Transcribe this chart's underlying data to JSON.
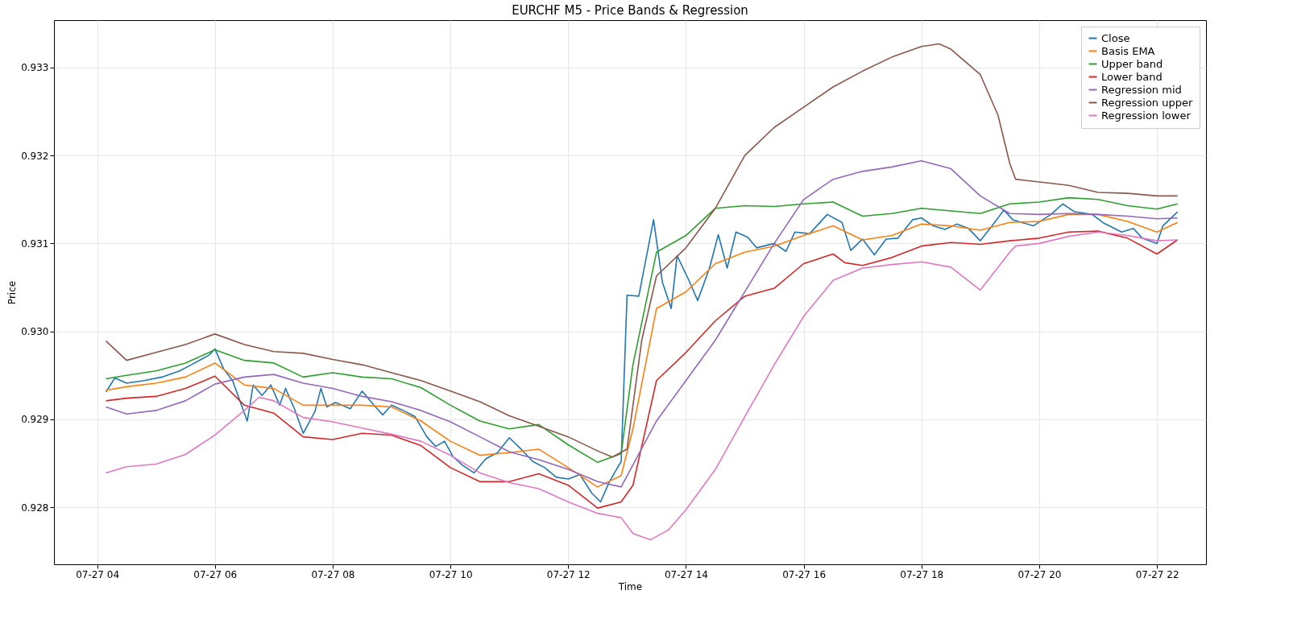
{
  "chart_data": {
    "type": "line",
    "title": "EURCHF M5 - Price Bands & Regression",
    "xlabel": "Time",
    "ylabel": "Price",
    "xlim": [
      "--07-27T03:16",
      "--07-27T22:50"
    ],
    "xticks": [
      {
        "value": "--07-27T04:00",
        "label": "07-27 04"
      },
      {
        "value": "--07-27T06:00",
        "label": "07-27 06"
      },
      {
        "value": "--07-27T08:00",
        "label": "07-27 08"
      },
      {
        "value": "--07-27T10:00",
        "label": "07-27 10"
      },
      {
        "value": "--07-27T12:00",
        "label": "07-27 12"
      },
      {
        "value": "--07-27T14:00",
        "label": "07-27 14"
      },
      {
        "value": "--07-27T16:00",
        "label": "07-27 16"
      },
      {
        "value": "--07-27T18:00",
        "label": "07-27 18"
      },
      {
        "value": "--07-27T20:00",
        "label": "07-27 20"
      },
      {
        "value": "--07-27T22:00",
        "label": "07-27 22"
      }
    ],
    "ylim": [
      0.92735,
      0.93354
    ],
    "yticks": [
      0.928,
      0.929,
      {
        "value": 0.93,
        "label": "0.930"
      },
      0.931,
      0.932,
      0.933
    ],
    "grid": true,
    "legend": "top right",
    "series": [
      {
        "name": "Close",
        "color": "#1f77b4",
        "x": [
          "--07-27T04:09",
          "--07-27T04:18",
          "--07-27T04:30",
          "--07-27T04:48",
          "--07-27T05:06",
          "--07-27T05:24",
          "--07-27T05:36",
          "--07-27T05:54",
          "--07-27T06:00",
          "--07-27T06:09",
          "--07-27T06:18",
          "--07-27T06:27",
          "--07-27T06:33",
          "--07-27T06:39",
          "--07-27T06:48",
          "--07-27T06:57",
          "--07-27T07:06",
          "--07-27T07:12",
          "--07-27T07:21",
          "--07-27T07:30",
          "--07-27T07:42",
          "--07-27T07:48",
          "--07-27T07:54",
          "--07-27T08:03",
          "--07-27T08:18",
          "--07-27T08:30",
          "--07-27T08:42",
          "--07-27T08:51",
          "--07-27T09:00",
          "--07-27T09:12",
          "--07-27T09:24",
          "--07-27T09:36",
          "--07-27T09:45",
          "--07-27T09:54",
          "--07-27T10:03",
          "--07-27T10:12",
          "--07-27T10:24",
          "--07-27T10:36",
          "--07-27T10:48",
          "--07-27T11:00",
          "--07-27T11:12",
          "--07-27T11:24",
          "--07-27T11:36",
          "--07-27T11:48",
          "--07-27T12:00",
          "--07-27T12:12",
          "--07-27T12:24",
          "--07-27T12:33",
          "--07-27T12:42",
          "--07-27T12:54",
          "--07-27T13:00",
          "--07-27T13:12",
          "--07-27T13:27",
          "--07-27T13:36",
          "--07-27T13:45",
          "--07-27T13:51",
          "--07-27T14:03",
          "--07-27T14:12",
          "--07-27T14:24",
          "--07-27T14:33",
          "--07-27T14:42",
          "--07-27T14:51",
          "--07-27T15:03",
          "--07-27T15:12",
          "--07-27T15:30",
          "--07-27T15:42",
          "--07-27T15:51",
          "--07-27T16:06",
          "--07-27T16:24",
          "--07-27T16:39",
          "--07-27T16:48",
          "--07-27T17:00",
          "--07-27T17:12",
          "--07-27T17:24",
          "--07-27T17:36",
          "--07-27T17:51",
          "--07-27T18:00",
          "--07-27T18:12",
          "--07-27T18:24",
          "--07-27T18:36",
          "--07-27T18:48",
          "--07-27T19:00",
          "--07-27T19:12",
          "--07-27T19:24",
          "--07-27T19:33",
          "--07-27T19:54",
          "--07-27T20:12",
          "--07-27T20:24",
          "--07-27T20:36",
          "--07-27T20:54",
          "--07-27T21:06",
          "--07-27T21:24",
          "--07-27T21:36",
          "--07-27T21:45",
          "--07-27T22:00",
          "--07-27T22:06",
          "--07-27T22:21"
        ],
        "values": [
          0.92931,
          0.92947,
          0.92941,
          0.92944,
          0.92948,
          0.92955,
          0.92962,
          0.92973,
          0.9298,
          0.92957,
          0.92944,
          0.92916,
          0.92898,
          0.92939,
          0.92927,
          0.92939,
          0.92916,
          0.92935,
          0.92912,
          0.92884,
          0.92909,
          0.92935,
          0.92914,
          0.92919,
          0.92912,
          0.92932,
          0.92916,
          0.92905,
          0.92916,
          0.9291,
          0.92903,
          0.9288,
          0.92869,
          0.92875,
          0.92857,
          0.92848,
          0.92839,
          0.92855,
          0.92862,
          0.92879,
          0.92866,
          0.92852,
          0.92845,
          0.92834,
          0.92832,
          0.92837,
          0.92816,
          0.92806,
          0.92829,
          0.92852,
          0.93041,
          0.9304,
          0.93127,
          0.93056,
          0.93026,
          0.93086,
          0.93058,
          0.93035,
          0.93072,
          0.9311,
          0.93072,
          0.93113,
          0.93107,
          0.93095,
          0.931,
          0.93091,
          0.93113,
          0.93111,
          0.93133,
          0.93124,
          0.93092,
          0.93105,
          0.93087,
          0.93105,
          0.93106,
          0.93127,
          0.93129,
          0.9312,
          0.93116,
          0.93122,
          0.93117,
          0.93103,
          0.9312,
          0.93138,
          0.93127,
          0.9312,
          0.93133,
          0.93145,
          0.93136,
          0.93133,
          0.93123,
          0.93113,
          0.93117,
          0.93106,
          0.931,
          0.9312,
          0.93136
        ]
      },
      {
        "name": "Basis EMA",
        "color": "#ff7f0e",
        "x": [
          "--07-27T04:09",
          "--07-27T04:30",
          "--07-27T05:00",
          "--07-27T05:30",
          "--07-27T06:00",
          "--07-27T06:30",
          "--07-27T07:00",
          "--07-27T07:30",
          "--07-27T08:00",
          "--07-27T08:30",
          "--07-27T09:00",
          "--07-27T09:30",
          "--07-27T10:00",
          "--07-27T10:30",
          "--07-27T11:00",
          "--07-27T11:30",
          "--07-27T12:00",
          "--07-27T12:30",
          "--07-27T12:54",
          "--07-27T13:06",
          "--07-27T13:30",
          "--07-27T14:00",
          "--07-27T14:30",
          "--07-27T15:00",
          "--07-27T15:30",
          "--07-27T16:00",
          "--07-27T16:30",
          "--07-27T17:00",
          "--07-27T17:30",
          "--07-27T18:00",
          "--07-27T18:30",
          "--07-27T19:00",
          "--07-27T19:30",
          "--07-27T20:00",
          "--07-27T20:30",
          "--07-27T21:00",
          "--07-27T21:30",
          "--07-27T22:00",
          "--07-27T22:21"
        ],
        "values": [
          0.92933,
          0.92937,
          0.92941,
          0.92948,
          0.92964,
          0.92939,
          0.92935,
          0.92916,
          0.92916,
          0.92916,
          0.92914,
          0.92898,
          0.92875,
          0.92859,
          0.92862,
          0.92866,
          0.92845,
          0.92823,
          0.92836,
          0.92889,
          0.93026,
          0.93045,
          0.93077,
          0.9309,
          0.93097,
          0.93109,
          0.9312,
          0.93104,
          0.93109,
          0.93122,
          0.9312,
          0.93115,
          0.93124,
          0.93125,
          0.93133,
          0.93133,
          0.93125,
          0.93113,
          0.93124
        ]
      },
      {
        "name": "Upper band",
        "color": "#2ca02c",
        "x": [
          "--07-27T04:09",
          "--07-27T04:30",
          "--07-27T05:00",
          "--07-27T05:30",
          "--07-27T06:00",
          "--07-27T06:30",
          "--07-27T07:00",
          "--07-27T07:30",
          "--07-27T08:00",
          "--07-27T08:30",
          "--07-27T09:00",
          "--07-27T09:30",
          "--07-27T10:00",
          "--07-27T10:30",
          "--07-27T11:00",
          "--07-27T11:30",
          "--07-27T12:00",
          "--07-27T12:30",
          "--07-27T12:54",
          "--07-27T13:06",
          "--07-27T13:30",
          "--07-27T14:00",
          "--07-27T14:30",
          "--07-27T15:00",
          "--07-27T15:30",
          "--07-27T16:00",
          "--07-27T16:30",
          "--07-27T17:00",
          "--07-27T17:30",
          "--07-27T18:00",
          "--07-27T18:30",
          "--07-27T19:00",
          "--07-27T19:30",
          "--07-27T20:00",
          "--07-27T20:30",
          "--07-27T21:00",
          "--07-27T21:30",
          "--07-27T22:00",
          "--07-27T22:21"
        ],
        "values": [
          0.92946,
          0.9295,
          0.92955,
          0.92964,
          0.92979,
          0.92967,
          0.92964,
          0.92948,
          0.92953,
          0.92948,
          0.92946,
          0.92936,
          0.92916,
          0.92898,
          0.92889,
          0.92894,
          0.92871,
          0.92851,
          0.92861,
          0.92962,
          0.9309,
          0.93109,
          0.9314,
          0.93143,
          0.93142,
          0.93145,
          0.93147,
          0.93131,
          0.93134,
          0.9314,
          0.93137,
          0.93134,
          0.93145,
          0.93147,
          0.93152,
          0.9315,
          0.93143,
          0.93139,
          0.93145
        ]
      },
      {
        "name": "Lower band",
        "color": "#d62728",
        "x": [
          "--07-27T04:09",
          "--07-27T04:30",
          "--07-27T05:00",
          "--07-27T05:30",
          "--07-27T06:00",
          "--07-27T06:30",
          "--07-27T07:00",
          "--07-27T07:30",
          "--07-27T08:00",
          "--07-27T08:30",
          "--07-27T09:00",
          "--07-27T09:30",
          "--07-27T10:00",
          "--07-27T10:30",
          "--07-27T11:00",
          "--07-27T11:30",
          "--07-27T12:00",
          "--07-27T12:30",
          "--07-27T12:54",
          "--07-27T13:06",
          "--07-27T13:30",
          "--07-27T14:00",
          "--07-27T14:30",
          "--07-27T15:00",
          "--07-27T15:30",
          "--07-27T16:00",
          "--07-27T16:30",
          "--07-27T16:42",
          "--07-27T17:00",
          "--07-27T17:30",
          "--07-27T18:00",
          "--07-27T18:30",
          "--07-27T19:00",
          "--07-27T19:30",
          "--07-27T20:00",
          "--07-27T20:30",
          "--07-27T21:00",
          "--07-27T21:30",
          "--07-27T22:00",
          "--07-27T22:21"
        ],
        "values": [
          0.92921,
          0.92924,
          0.92926,
          0.92935,
          0.92949,
          0.92916,
          0.92907,
          0.9288,
          0.92877,
          0.92884,
          0.92882,
          0.9287,
          0.92845,
          0.92829,
          0.92829,
          0.92838,
          0.92825,
          0.92799,
          0.92806,
          0.92825,
          0.92944,
          0.92976,
          0.93012,
          0.9304,
          0.93049,
          0.93077,
          0.93088,
          0.93078,
          0.93075,
          0.93084,
          0.93097,
          0.93101,
          0.93099,
          0.93103,
          0.93106,
          0.93113,
          0.93114,
          0.93106,
          0.93088,
          0.93104
        ]
      },
      {
        "name": "Regression mid",
        "color": "#9467bd",
        "x": [
          "--07-27T04:09",
          "--07-27T04:30",
          "--07-27T05:00",
          "--07-27T05:30",
          "--07-27T06:00",
          "--07-27T06:30",
          "--07-27T07:00",
          "--07-27T07:30",
          "--07-27T08:00",
          "--07-27T08:30",
          "--07-27T09:00",
          "--07-27T09:30",
          "--07-27T10:00",
          "--07-27T10:30",
          "--07-27T11:00",
          "--07-27T11:30",
          "--07-27T12:00",
          "--07-27T12:30",
          "--07-27T12:54",
          "--07-27T13:30",
          "--07-27T14:00",
          "--07-27T14:30",
          "--07-27T15:00",
          "--07-27T15:30",
          "--07-27T16:00",
          "--07-27T16:30",
          "--07-27T17:00",
          "--07-27T17:30",
          "--07-27T18:00",
          "--07-27T18:30",
          "--07-27T19:00",
          "--07-27T19:30",
          "--07-27T20:00",
          "--07-27T20:30",
          "--07-27T21:00",
          "--07-27T21:30",
          "--07-27T22:00",
          "--07-27T22:21"
        ],
        "values": [
          0.92914,
          0.92906,
          0.9291,
          0.92921,
          0.9294,
          0.92948,
          0.92951,
          0.92941,
          0.92935,
          0.92926,
          0.9292,
          0.9291,
          0.92897,
          0.9288,
          0.92863,
          0.92854,
          0.92843,
          0.92829,
          0.92823,
          0.92898,
          0.92944,
          0.9299,
          0.93045,
          0.931,
          0.9315,
          0.93173,
          0.93182,
          0.93187,
          0.93194,
          0.93185,
          0.93154,
          0.93134,
          0.93133,
          0.93134,
          0.93133,
          0.93131,
          0.93128,
          0.93129
        ]
      },
      {
        "name": "Regression upper",
        "color": "#8c564b",
        "x": [
          "--07-27T04:09",
          "--07-27T04:30",
          "--07-27T05:00",
          "--07-27T05:30",
          "--07-27T06:00",
          "--07-27T06:30",
          "--07-27T07:00",
          "--07-27T07:30",
          "--07-27T08:00",
          "--07-27T08:30",
          "--07-27T09:00",
          "--07-27T09:30",
          "--07-27T10:00",
          "--07-27T10:30",
          "--07-27T11:00",
          "--07-27T11:30",
          "--07-27T12:00",
          "--07-27T12:30",
          "--07-27T12:45",
          "--07-27T13:00",
          "--07-27T13:15",
          "--07-27T13:30",
          "--07-27T14:00",
          "--07-27T14:30",
          "--07-27T15:00",
          "--07-27T15:30",
          "--07-27T16:00",
          "--07-27T16:30",
          "--07-27T17:00",
          "--07-27T17:30",
          "--07-27T18:00",
          "--07-27T18:18",
          "--07-27T18:30",
          "--07-27T19:00",
          "--07-27T19:18",
          "--07-27T19:30",
          "--07-27T19:36",
          "--07-27T20:00",
          "--07-27T20:30",
          "--07-27T21:00",
          "--07-27T21:30",
          "--07-27T22:00",
          "--07-27T22:21"
        ],
        "values": [
          0.92989,
          0.92967,
          0.92976,
          0.92985,
          0.92997,
          0.92985,
          0.92977,
          0.92975,
          0.92968,
          0.92962,
          0.92953,
          0.92944,
          0.92932,
          0.9292,
          0.92904,
          0.92892,
          0.9288,
          0.92864,
          0.92857,
          0.92866,
          0.9299,
          0.93063,
          0.93095,
          0.9314,
          0.932,
          0.93232,
          0.93255,
          0.93278,
          0.93296,
          0.93312,
          0.93324,
          0.93327,
          0.93321,
          0.93292,
          0.93246,
          0.93191,
          0.93173,
          0.9317,
          0.93166,
          0.93158,
          0.93157,
          0.93154,
          0.93154
        ]
      },
      {
        "name": "Regression lower",
        "color": "#e377c2",
        "x": [
          "--07-27T04:09",
          "--07-27T04:30",
          "--07-27T05:00",
          "--07-27T05:30",
          "--07-27T06:00",
          "--07-27T06:30",
          "--07-27T06:45",
          "--07-27T07:00",
          "--07-27T07:30",
          "--07-27T08:00",
          "--07-27T08:30",
          "--07-27T09:00",
          "--07-27T09:30",
          "--07-27T10:00",
          "--07-27T10:30",
          "--07-27T11:00",
          "--07-27T11:30",
          "--07-27T12:00",
          "--07-27T12:30",
          "--07-27T12:54",
          "--07-27T13:06",
          "--07-27T13:24",
          "--07-27T13:42",
          "--07-27T14:00",
          "--07-27T14:30",
          "--07-27T15:00",
          "--07-27T15:30",
          "--07-27T16:00",
          "--07-27T16:30",
          "--07-27T17:00",
          "--07-27T17:30",
          "--07-27T18:00",
          "--07-27T18:30",
          "--07-27T19:00",
          "--07-27T19:30",
          "--07-27T19:36",
          "--07-27T20:00",
          "--07-27T20:30",
          "--07-27T21:00",
          "--07-27T21:30",
          "--07-27T22:00",
          "--07-27T22:21"
        ],
        "values": [
          0.92839,
          0.92846,
          0.92849,
          0.9286,
          0.92882,
          0.9291,
          0.92925,
          0.92921,
          0.92902,
          0.92897,
          0.9289,
          0.92883,
          0.92875,
          0.92859,
          0.92839,
          0.92828,
          0.92821,
          0.92806,
          0.92793,
          0.92788,
          0.9277,
          0.92763,
          0.92774,
          0.92797,
          0.92843,
          0.92903,
          0.92962,
          0.93017,
          0.93058,
          0.93072,
          0.93076,
          0.93079,
          0.93073,
          0.93047,
          0.9309,
          0.93097,
          0.931,
          0.93108,
          0.93113,
          0.93109,
          0.93103,
          0.93104
        ]
      }
    ]
  }
}
